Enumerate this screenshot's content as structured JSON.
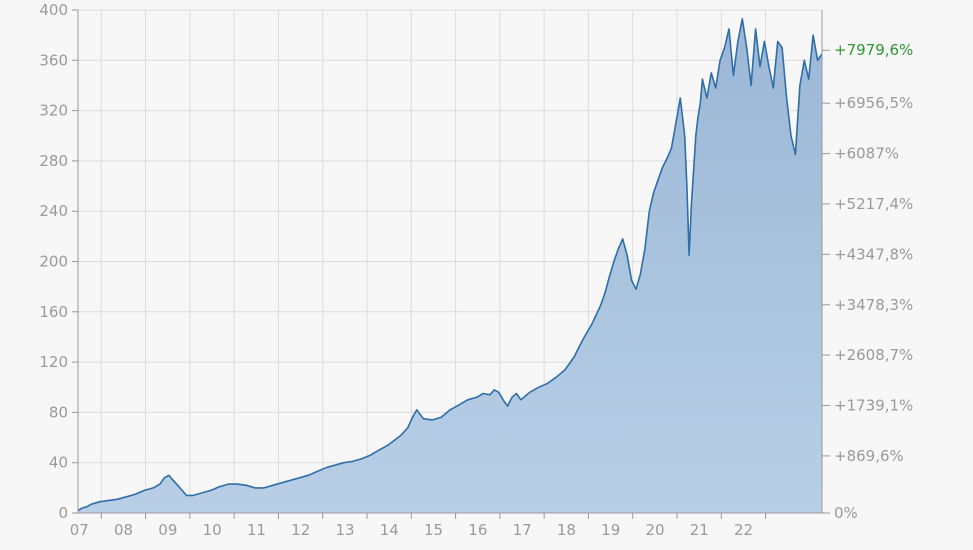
{
  "chart_data": {
    "type": "area",
    "title": "",
    "xlabel": "",
    "ylabel": "",
    "ylim": [
      0,
      400
    ],
    "xlim": [
      2006.0,
      2022.8
    ],
    "grid": true,
    "legend": "none",
    "left_ticks": [
      0,
      40,
      80,
      120,
      160,
      200,
      240,
      280,
      320,
      360,
      400
    ],
    "right_ticks": [
      {
        "label": "0%",
        "value": 0
      },
      {
        "label": "+869,6%",
        "value": 45.4
      },
      {
        "label": "+1739,1%",
        "value": 85.5
      },
      {
        "label": "+2608,7%",
        "value": 125.6
      },
      {
        "label": "+3478,3%",
        "value": 165.6
      },
      {
        "label": "+4347,8%",
        "value": 205.7
      },
      {
        "label": "+5217,4%",
        "value": 245.8
      },
      {
        "label": "+6087%",
        "value": 285.8
      },
      {
        "label": "+6956,5%",
        "value": 325.9
      },
      {
        "label": "+7979,6%",
        "value": 368.0,
        "highlight": true
      }
    ],
    "x_ticks": [
      {
        "label": "07",
        "value": 2007.0
      },
      {
        "label": "08",
        "value": 2008.0
      },
      {
        "label": "09",
        "value": 2009.0
      },
      {
        "label": "10",
        "value": 2010.0
      },
      {
        "label": "11",
        "value": 2011.0
      },
      {
        "label": "12",
        "value": 2012.0
      },
      {
        "label": "13",
        "value": 2013.0
      },
      {
        "label": "14",
        "value": 2014.0
      },
      {
        "label": "15",
        "value": 2015.0
      },
      {
        "label": "16",
        "value": 2016.0
      },
      {
        "label": "17",
        "value": 2017.0
      },
      {
        "label": "18",
        "value": 2018.0
      },
      {
        "label": "19",
        "value": 2019.0
      },
      {
        "label": "20",
        "value": 2020.0
      },
      {
        "label": "21",
        "value": 2021.0
      },
      {
        "label": "22",
        "value": 2022.0
      }
    ],
    "series": [
      {
        "x": [
          2006.0,
          2006.1,
          2006.2,
          2006.3,
          2006.5,
          2006.7,
          2006.9,
          2007.1,
          2007.3,
          2007.5,
          2007.7,
          2007.85,
          2007.95,
          2008.05,
          2008.15,
          2008.3,
          2008.45,
          2008.6,
          2008.8,
          2009.0,
          2009.2,
          2009.4,
          2009.6,
          2009.8,
          2010.0,
          2010.2,
          2010.4,
          2010.6,
          2010.8,
          2011.0,
          2011.2,
          2011.4,
          2011.6,
          2011.8,
          2012.0,
          2012.2,
          2012.4,
          2012.6,
          2012.8,
          2013.0,
          2013.15,
          2013.3,
          2013.45,
          2013.55,
          2013.65,
          2013.8,
          2014.0,
          2014.2,
          2014.4,
          2014.6,
          2014.8,
          2015.0,
          2015.15,
          2015.3,
          2015.4,
          2015.5,
          2015.6,
          2015.7,
          2015.8,
          2015.9,
          2016.0,
          2016.2,
          2016.4,
          2016.6,
          2016.8,
          2017.0,
          2017.2,
          2017.4,
          2017.6,
          2017.8,
          2017.9,
          2018.0,
          2018.1,
          2018.2,
          2018.3,
          2018.4,
          2018.5,
          2018.6,
          2018.7,
          2018.8,
          2018.85,
          2018.9,
          2019.0,
          2019.1,
          2019.2,
          2019.3,
          2019.4,
          2019.5,
          2019.6,
          2019.7,
          2019.75,
          2019.8,
          2019.85,
          2019.95,
          2020.0,
          2020.05,
          2020.1,
          2020.2,
          2020.3,
          2020.4,
          2020.5,
          2020.6,
          2020.7,
          2020.8,
          2020.9,
          2021.0,
          2021.1,
          2021.2,
          2021.3,
          2021.4,
          2021.5,
          2021.6,
          2021.7,
          2021.8,
          2021.9,
          2022.0,
          2022.1,
          2022.2,
          2022.3,
          2022.4,
          2022.5,
          2022.6,
          2022.7,
          2022.8
        ],
        "values": [
          2,
          4,
          5,
          7,
          9,
          10,
          11,
          13,
          15,
          18,
          20,
          23,
          28,
          30,
          26,
          20,
          14,
          14,
          16,
          18,
          21,
          23,
          23,
          22,
          20,
          20,
          22,
          24,
          26,
          28,
          30,
          33,
          36,
          38,
          40,
          41,
          43,
          46,
          50,
          54,
          58,
          62,
          68,
          76,
          82,
          75,
          74,
          76,
          82,
          86,
          90,
          92,
          95,
          94,
          98,
          96,
          90,
          85,
          92,
          95,
          90,
          96,
          100,
          103,
          108,
          114,
          124,
          138,
          150,
          165,
          175,
          188,
          200,
          210,
          218,
          205,
          185,
          178,
          190,
          210,
          225,
          240,
          255,
          265,
          275,
          282,
          290,
          310,
          330,
          300,
          260,
          205,
          245,
          300,
          315,
          325,
          345,
          330,
          350,
          338,
          360,
          370,
          385,
          348,
          375,
          393,
          370,
          340,
          385,
          355,
          375,
          355,
          338,
          375,
          370,
          330,
          300,
          285,
          340,
          360,
          345,
          380,
          360,
          365
        ]
      }
    ]
  }
}
